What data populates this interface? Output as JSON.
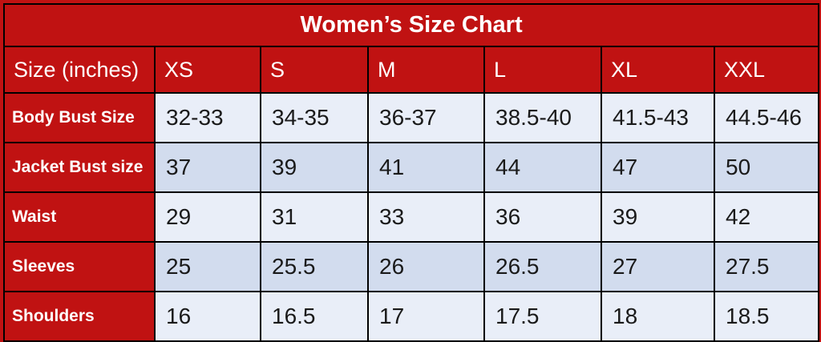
{
  "colors": {
    "table_red": "#c01212",
    "row_light": "#e9eef8",
    "row_dark": "#d2dcee",
    "border": "#000000",
    "text_on_red": "#ffffff",
    "text_data": "#1a1a1a"
  },
  "chart_data": {
    "type": "table",
    "title": "Women’s Size Chart",
    "columns": [
      "Size (inches)",
      "XS",
      "S",
      "M",
      "L",
      "XL",
      "XXL"
    ],
    "rows": [
      {
        "label": "Body Bust Size",
        "values": [
          "32-33",
          "34-35",
          "36-37",
          "38.5-40",
          "41.5-43",
          "44.5-46"
        ]
      },
      {
        "label": "Jacket Bust size",
        "values": [
          "37",
          "39",
          "41",
          "44",
          "47",
          "50"
        ]
      },
      {
        "label": "Waist",
        "values": [
          "29",
          "31",
          "33",
          "36",
          "39",
          "42"
        ]
      },
      {
        "label": "Sleeves",
        "values": [
          "25",
          "25.5",
          "26",
          "26.5",
          "27",
          "27.5"
        ]
      },
      {
        "label": "Shoulders",
        "values": [
          "16",
          "16.5",
          "17",
          "17.5",
          "18",
          "18.5"
        ]
      }
    ]
  }
}
